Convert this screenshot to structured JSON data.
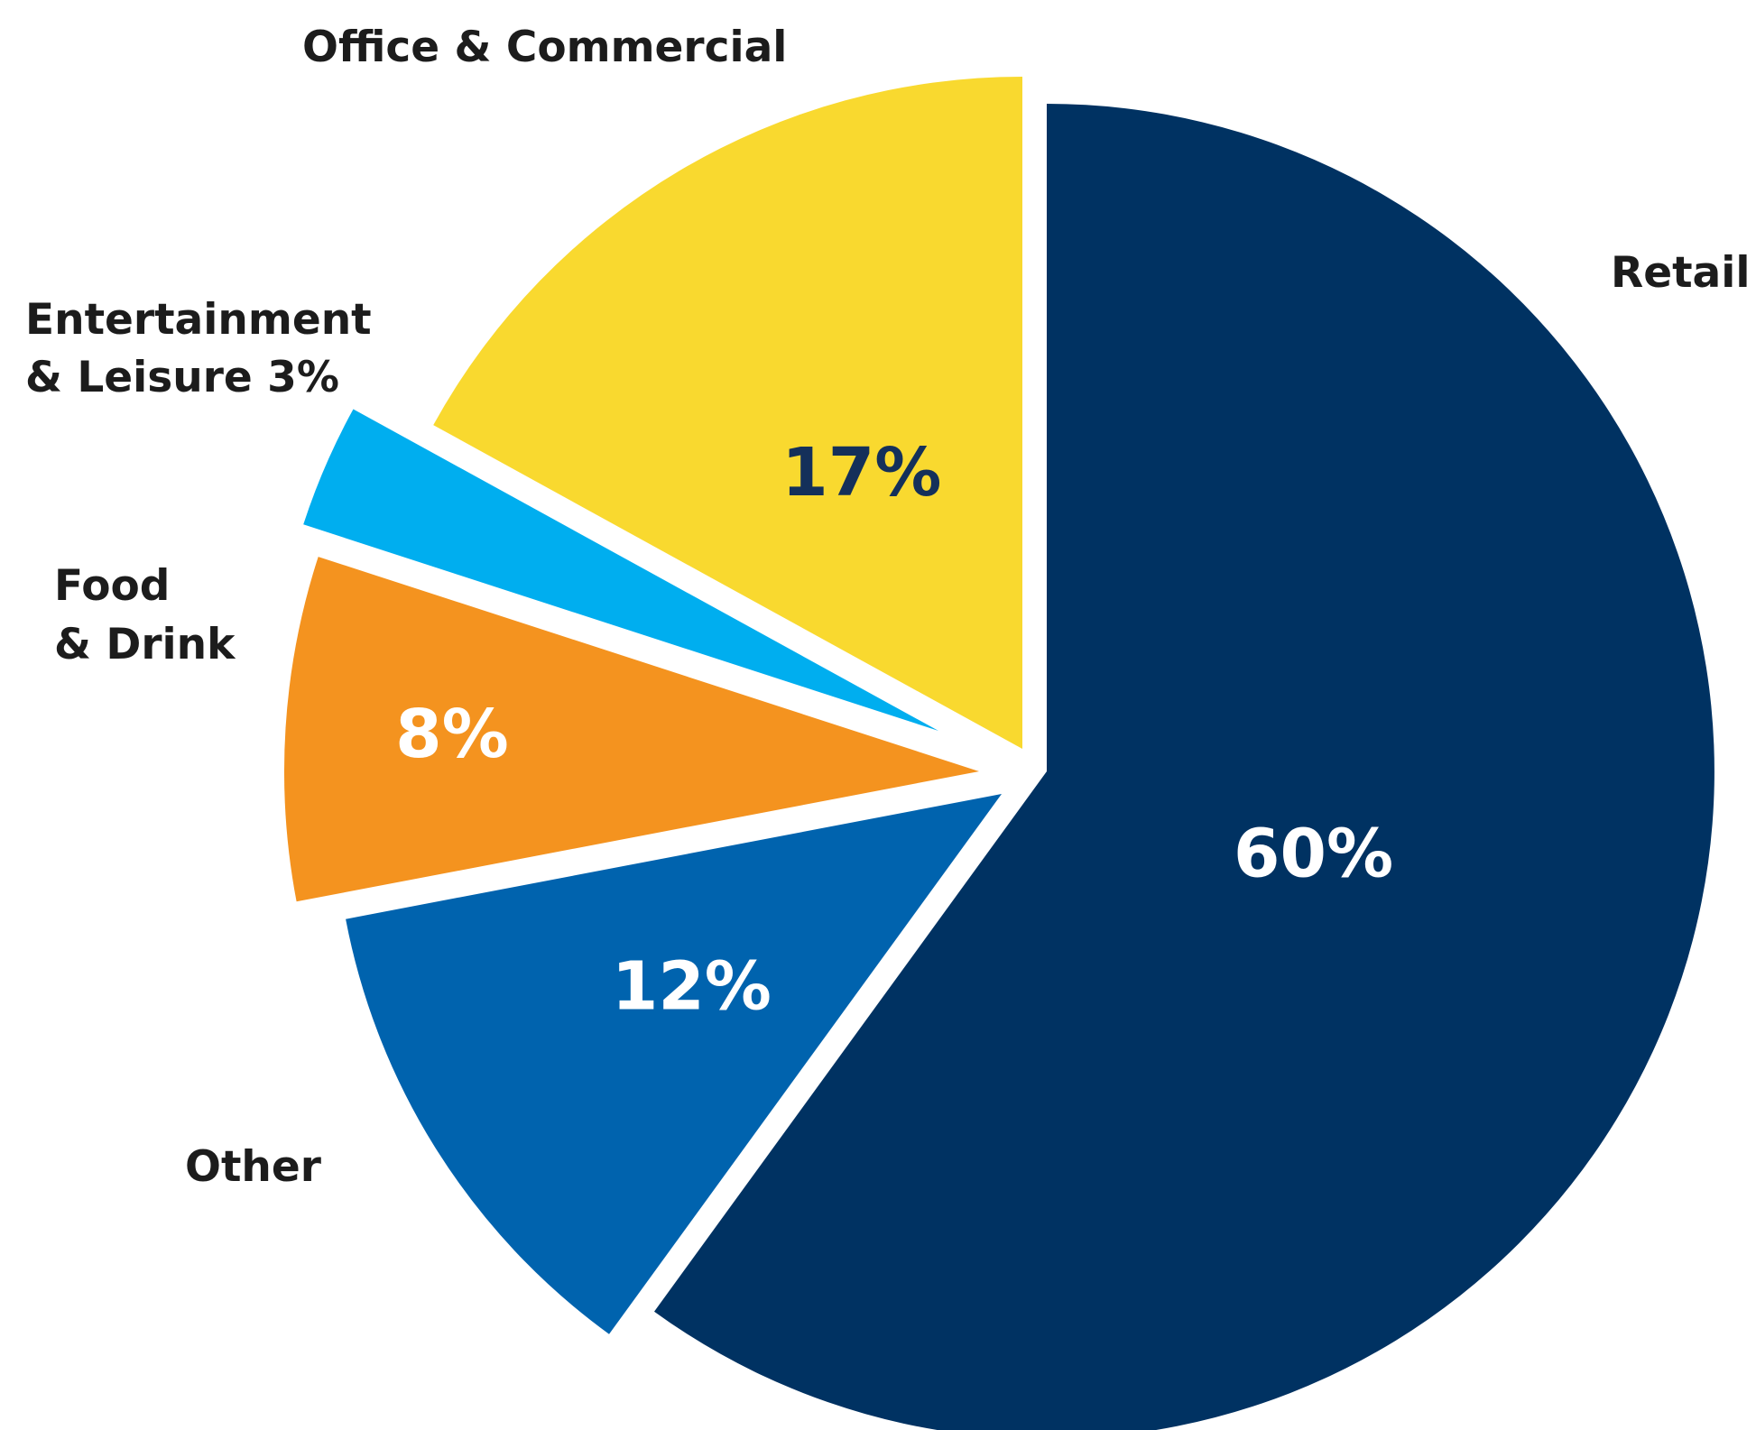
{
  "chart_data": {
    "type": "pie",
    "slices": [
      {
        "name": "Retail",
        "value": 60,
        "label": "60%",
        "color": "#003262",
        "label_color": "#ffffff"
      },
      {
        "name": "Other",
        "value": 12,
        "label": "12%",
        "color": "#0063AE",
        "label_color": "#ffffff"
      },
      {
        "name": "Food & Drink",
        "value": 8,
        "label": "8%",
        "color": "#F4931F",
        "label_color": "#ffffff"
      },
      {
        "name": "Entertainment & Leisure",
        "value": 3,
        "label": "",
        "color": "#00AEEF",
        "label_color": "#ffffff"
      },
      {
        "name": "Office & Commercial",
        "value": 17,
        "label": "17%",
        "color": "#F9D92F",
        "label_color": "#14305A"
      }
    ]
  },
  "labels": {
    "office": "Office & Commercial",
    "retail": "Retail",
    "entertainment_line1": "Entertainment",
    "entertainment_line2": "& Leisure 3%",
    "food_line1": "Food",
    "food_line2": "& Drink",
    "other": "Other"
  }
}
